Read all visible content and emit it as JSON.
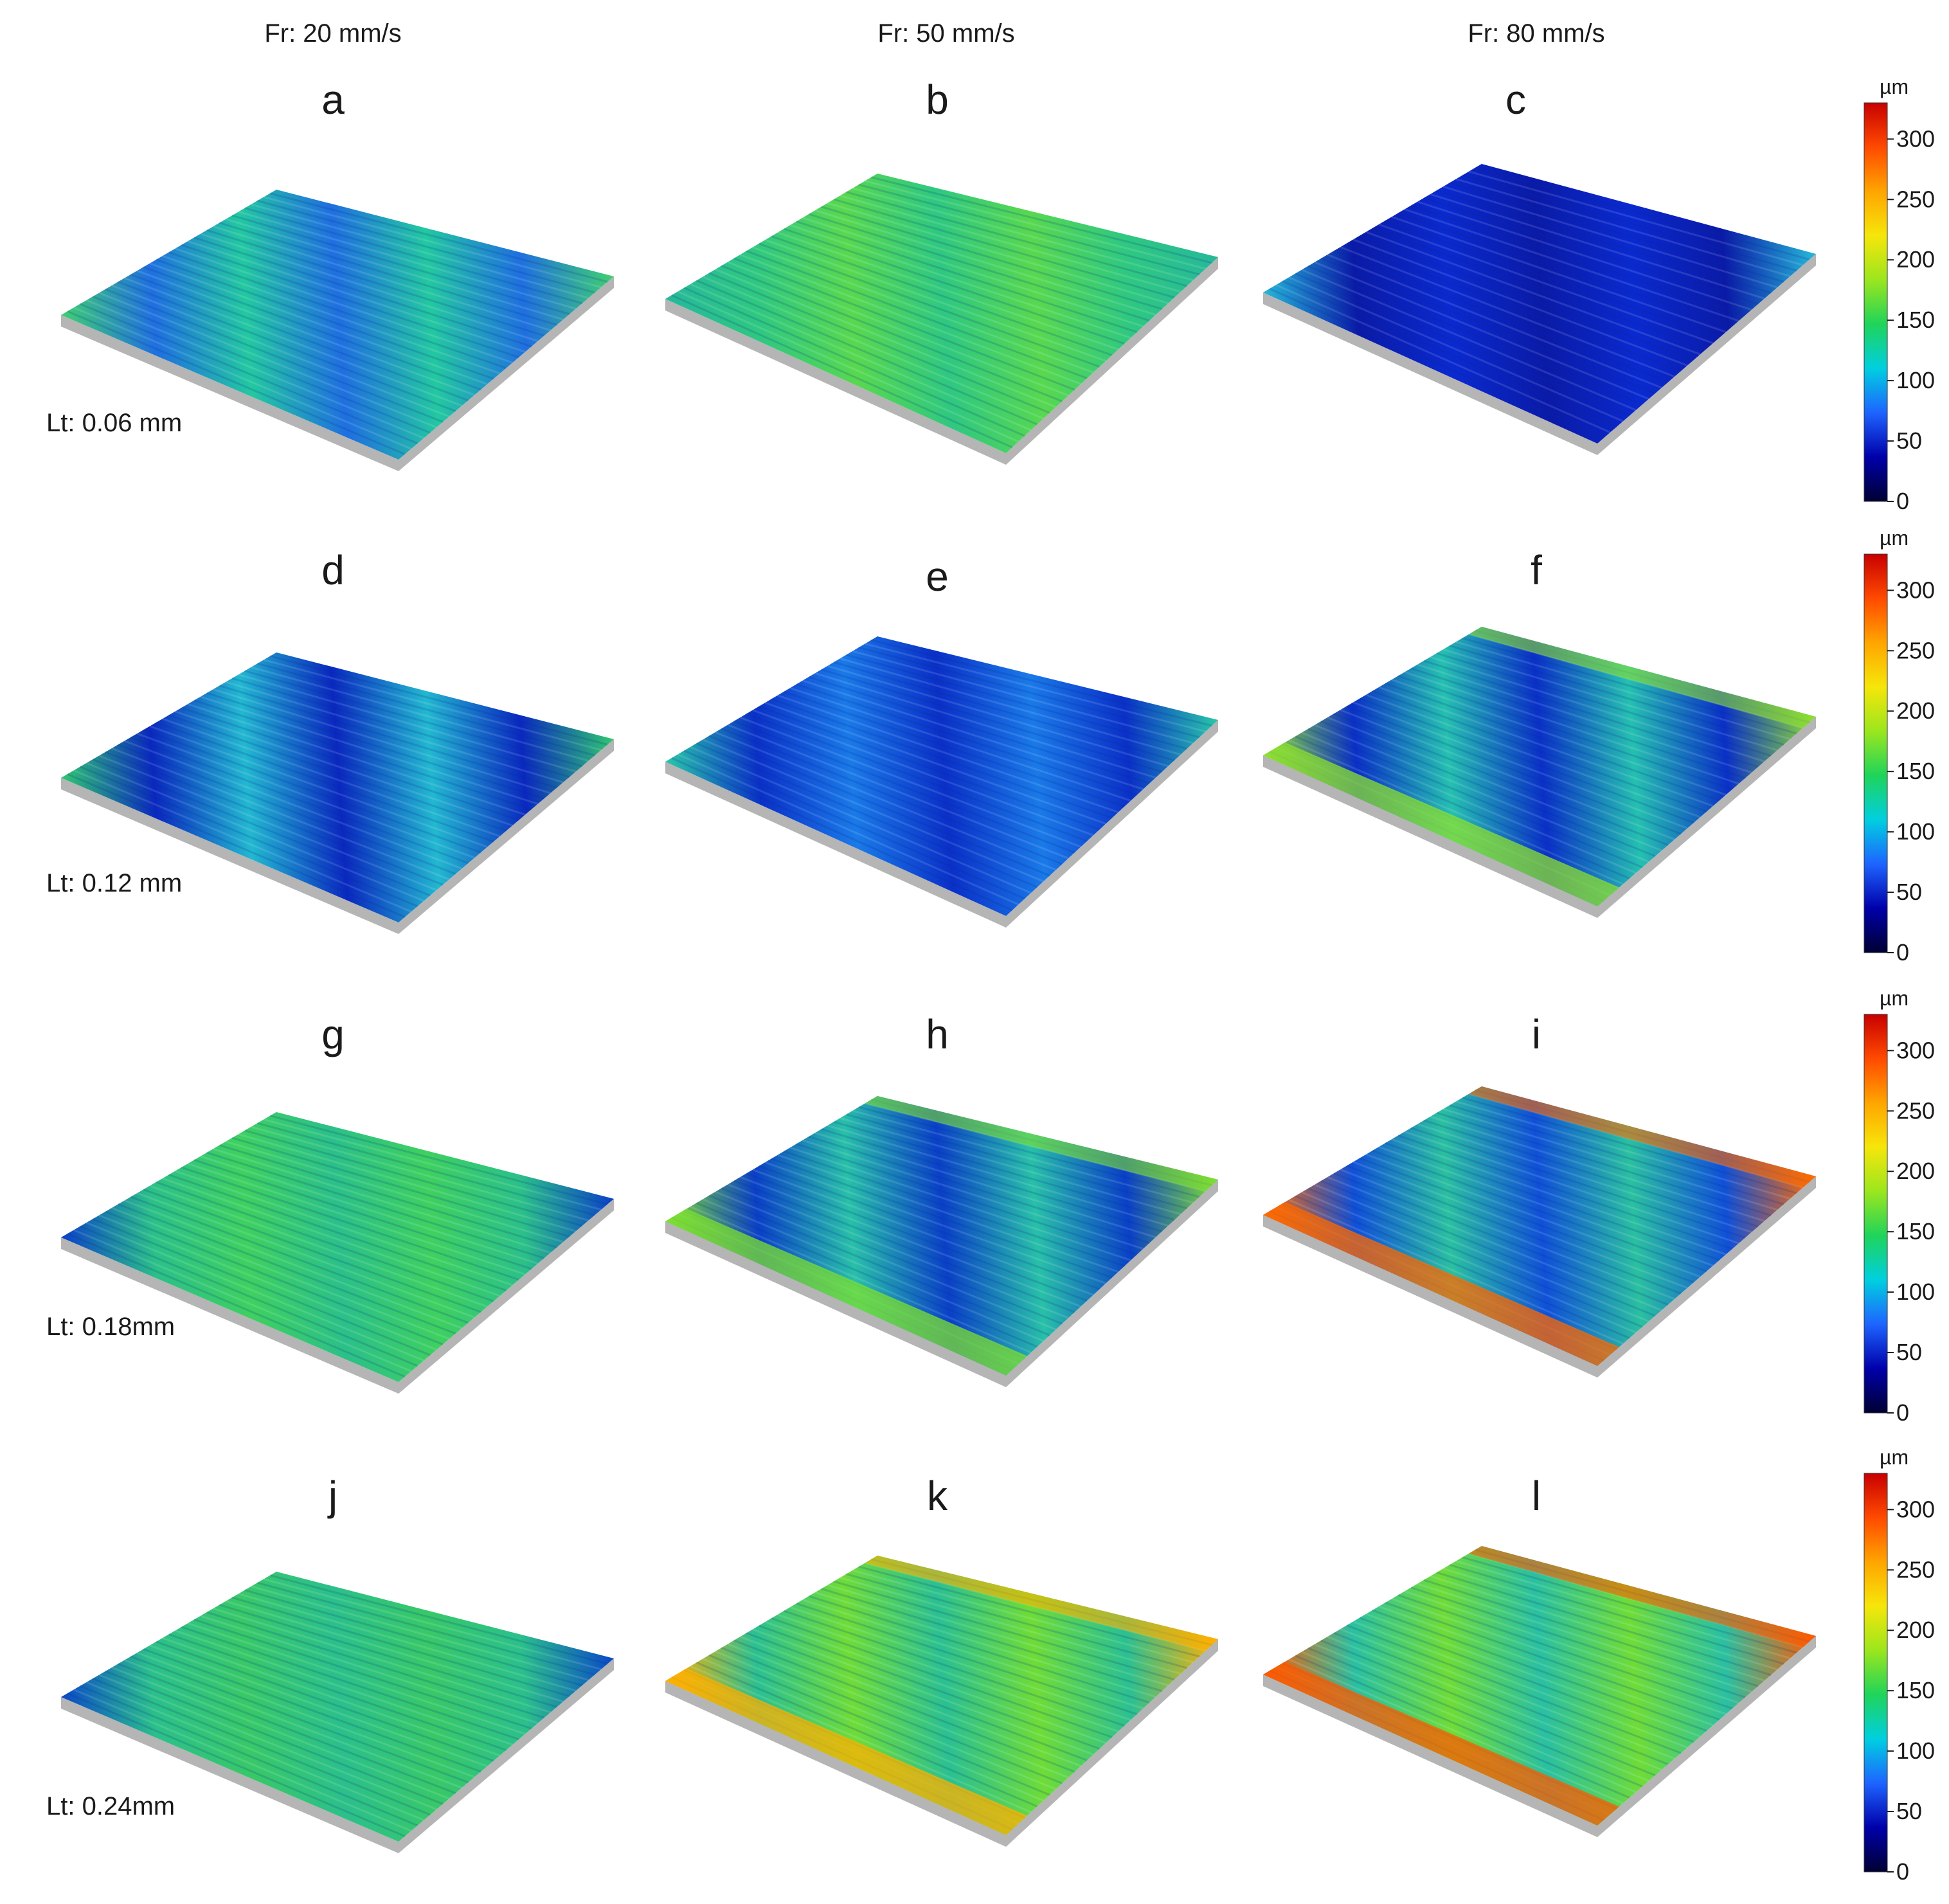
{
  "column_headers": [
    "Fr: 20 mm/s",
    "Fr: 50 mm/s",
    "Fr: 80 mm/s"
  ],
  "row_labels": [
    "Lt: 0.06 mm",
    "Lt: 0.12 mm",
    "Lt: 0.18mm",
    "Lt: 0.24mm"
  ],
  "panels": [
    "a",
    "b",
    "c",
    "d",
    "e",
    "f",
    "g",
    "h",
    "i",
    "j",
    "k",
    "l"
  ],
  "colorbar": {
    "unit": "µm",
    "ticks": [
      "0",
      "50",
      "100",
      "150",
      "200",
      "250",
      "300"
    ],
    "colors": [
      "#000033",
      "#0000aa",
      "#1e64ff",
      "#00cfe0",
      "#1fd45a",
      "#9be61e",
      "#f6e60a",
      "#ffa500",
      "#ff4a00",
      "#c80000"
    ]
  },
  "surface_palette": {
    "a": [
      "#1f6fe0",
      "#23c8a0",
      "#3fd070"
    ],
    "b": [
      "#2fc880",
      "#58d850",
      "#26b89a"
    ],
    "c": [
      "#0a1aa8",
      "#0a2ad0",
      "#25b8d8"
    ],
    "d": [
      "#0a28c0",
      "#22b8d0",
      "#2fc870"
    ],
    "e": [
      "#0a30c8",
      "#1a7ae8",
      "#28c8a8"
    ],
    "f": [
      "#0a30c8",
      "#25c0b0",
      "#8ee030"
    ],
    "g": [
      "#2bc088",
      "#3ed060",
      "#0a40c8"
    ],
    "h": [
      "#0a40c8",
      "#28c0a8",
      "#7ee030"
    ],
    "i": [
      "#1050d8",
      "#2ac0a0",
      "#ff6a00"
    ],
    "j": [
      "#2bc08a",
      "#38c868",
      "#0a48c8"
    ],
    "k": [
      "#2bc090",
      "#6edc38",
      "#ffb000"
    ],
    "l": [
      "#2ac0a0",
      "#6edc38",
      "#ff5a00"
    ]
  }
}
